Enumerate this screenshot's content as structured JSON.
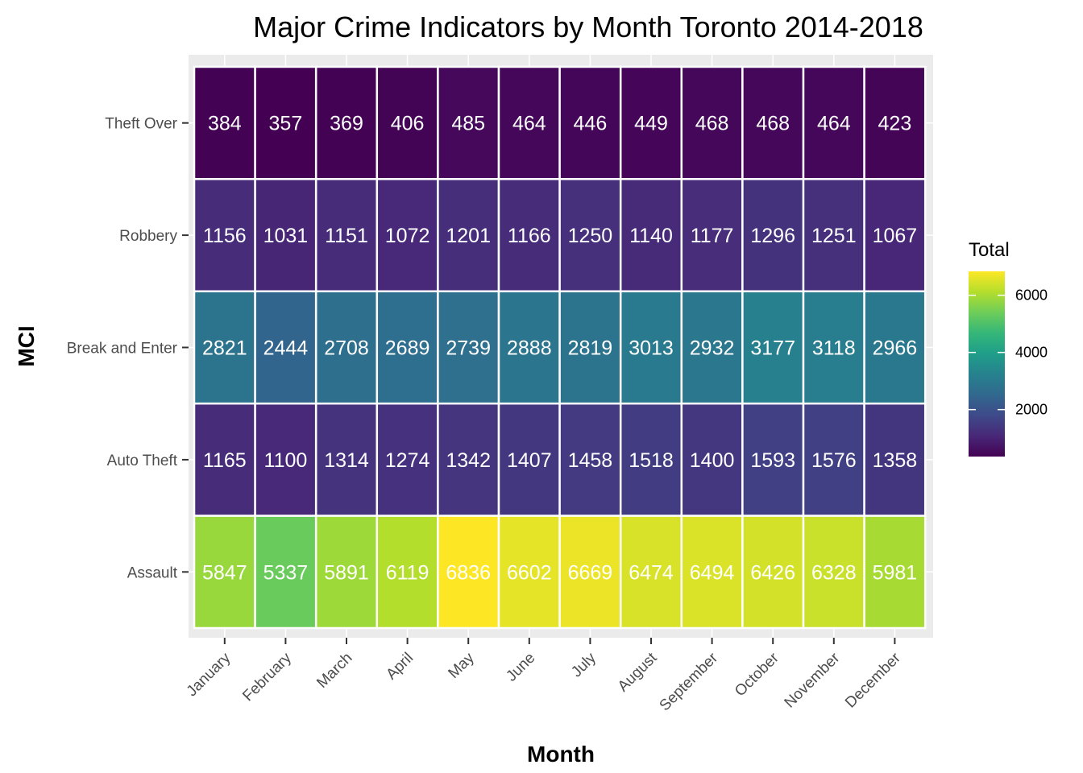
{
  "chart_data": {
    "type": "heatmap",
    "title": "Major Crime Indicators by Month Toronto 2014-2018",
    "xlabel": "Month",
    "ylabel": "MCI",
    "x": [
      "January",
      "February",
      "March",
      "April",
      "May",
      "June",
      "July",
      "August",
      "September",
      "October",
      "November",
      "December"
    ],
    "y": [
      "Theft Over",
      "Robbery",
      "Break and Enter",
      "Auto Theft",
      "Assault"
    ],
    "values": [
      [
        384,
        357,
        369,
        406,
        485,
        464,
        446,
        449,
        468,
        468,
        464,
        423
      ],
      [
        1156,
        1031,
        1151,
        1072,
        1201,
        1166,
        1250,
        1140,
        1177,
        1296,
        1251,
        1067
      ],
      [
        2821,
        2444,
        2708,
        2689,
        2739,
        2888,
        2819,
        3013,
        2932,
        3177,
        3118,
        2966
      ],
      [
        1165,
        1100,
        1314,
        1274,
        1342,
        1407,
        1458,
        1518,
        1400,
        1593,
        1576,
        1358
      ],
      [
        5847,
        5337,
        5891,
        6119,
        6836,
        6602,
        6669,
        6474,
        6494,
        6426,
        6328,
        5981
      ]
    ],
    "legend": {
      "title": "Total",
      "ticks": [
        2000,
        4000,
        6000
      ],
      "min": 357,
      "max": 6836,
      "placement": "right"
    },
    "colorscale": "viridis",
    "colors": {
      "panel_background": "#EBEBEB",
      "cell_border": "#FFFFFF",
      "cell_text": "#FFFFFF"
    }
  }
}
